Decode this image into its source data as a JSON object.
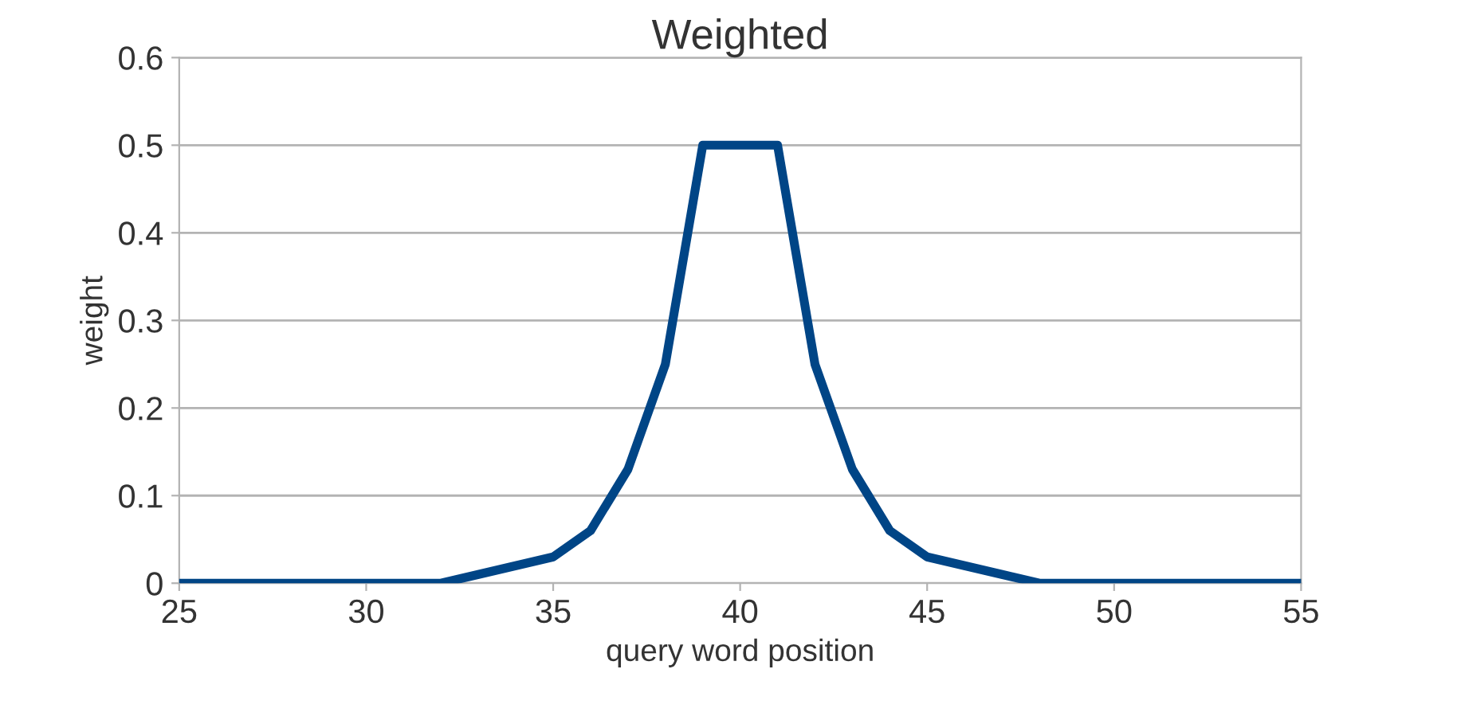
{
  "chart_data": {
    "type": "line",
    "title": "Weighted",
    "xlabel": "query word position",
    "ylabel": "weight",
    "x": [
      25,
      26,
      27,
      28,
      29,
      30,
      31,
      32,
      33,
      34,
      35,
      36,
      37,
      38,
      39,
      40,
      41,
      42,
      43,
      44,
      45,
      46,
      47,
      48,
      49,
      50,
      51,
      52,
      53,
      54,
      55
    ],
    "series": [
      {
        "color": "#004586",
        "values": [
          0,
          0,
          0,
          0,
          0,
          0,
          0,
          0,
          0.01,
          0.02,
          0.03,
          0.06,
          0.13,
          0.25,
          0.5,
          0.5,
          0.5,
          0.25,
          0.13,
          0.06,
          0.03,
          0.02,
          0.01,
          0,
          0,
          0,
          0,
          0,
          0,
          0,
          0
        ]
      }
    ],
    "xlim": [
      25,
      55
    ],
    "xticks": [
      25,
      30,
      35,
      40,
      45,
      50,
      55
    ],
    "ylim": [
      0,
      0.6
    ],
    "yticks": [
      0,
      0.1,
      0.2,
      0.3,
      0.4,
      0.5,
      0.6
    ],
    "grid": "y",
    "legend": false,
    "marker": "none",
    "line_style": "solid"
  }
}
